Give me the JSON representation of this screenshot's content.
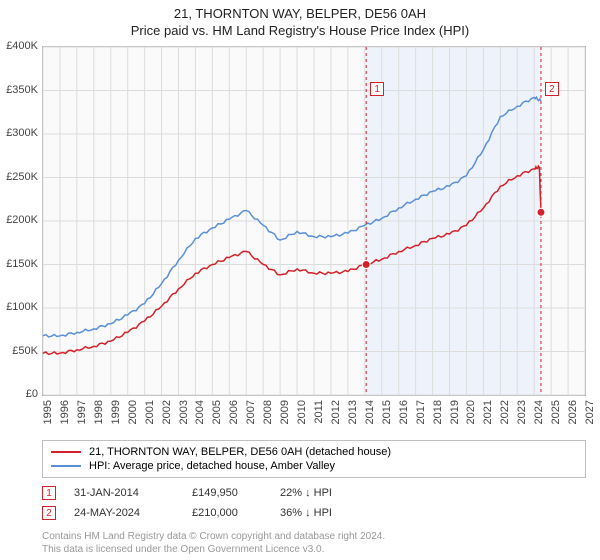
{
  "title_line1": "21, THORNTON WAY, BELPER, DE56 0AH",
  "title_line2": "Price paid vs. HM Land Registry's House Price Index (HPI)",
  "chart": {
    "type": "line",
    "x_min": 1995,
    "x_max": 2027,
    "y_min": 0,
    "y_max": 400000,
    "y_tick_step": 50000,
    "y_tick_labels": [
      "£0",
      "£50K",
      "£100K",
      "£150K",
      "£200K",
      "£250K",
      "£300K",
      "£350K",
      "£400K"
    ],
    "x_ticks": [
      1995,
      1996,
      1997,
      1998,
      1999,
      2000,
      2001,
      2002,
      2003,
      2004,
      2005,
      2006,
      2007,
      2008,
      2009,
      2010,
      2011,
      2012,
      2013,
      2014,
      2015,
      2016,
      2017,
      2018,
      2019,
      2020,
      2021,
      2022,
      2023,
      2024,
      2025,
      2026,
      2027
    ],
    "shade": {
      "x_start": 2014.08,
      "x_end": 2024.4,
      "color": "#eef3fb"
    },
    "grid_color": "#dcdcdc",
    "background_color": "#fafafa",
    "series": [
      {
        "name": "price_paid",
        "label": "21, THORNTON WAY, BELPER, DE56 0AH (detached house)",
        "color": "#d2222a",
        "width": 1.5,
        "points": [
          [
            1995,
            48000
          ],
          [
            1996,
            48000
          ],
          [
            1997,
            52000
          ],
          [
            1998,
            56000
          ],
          [
            1999,
            62000
          ],
          [
            2000,
            72000
          ],
          [
            2001,
            85000
          ],
          [
            2002,
            102000
          ],
          [
            2003,
            122000
          ],
          [
            2004,
            140000
          ],
          [
            2005,
            150000
          ],
          [
            2006,
            158000
          ],
          [
            2007,
            165000
          ],
          [
            2008,
            150000
          ],
          [
            2009,
            138000
          ],
          [
            2010,
            145000
          ],
          [
            2011,
            140000
          ],
          [
            2012,
            140000
          ],
          [
            2013,
            142000
          ],
          [
            2014,
            149950
          ],
          [
            2015,
            156000
          ],
          [
            2016,
            165000
          ],
          [
            2017,
            172000
          ],
          [
            2018,
            180000
          ],
          [
            2019,
            185000
          ],
          [
            2020,
            195000
          ],
          [
            2021,
            215000
          ],
          [
            2022,
            240000
          ],
          [
            2023,
            252000
          ],
          [
            2024,
            260000
          ],
          [
            2024.3,
            262000
          ],
          [
            2024.4,
            210000
          ]
        ]
      },
      {
        "name": "hpi",
        "label": "HPI: Average price, detached house, Amber Valley",
        "color": "#5b8fd6",
        "width": 1.5,
        "points": [
          [
            1995,
            68000
          ],
          [
            1996,
            68000
          ],
          [
            1997,
            72000
          ],
          [
            1998,
            76000
          ],
          [
            1999,
            82000
          ],
          [
            2000,
            92000
          ],
          [
            2001,
            105000
          ],
          [
            2002,
            128000
          ],
          [
            2003,
            155000
          ],
          [
            2004,
            180000
          ],
          [
            2005,
            192000
          ],
          [
            2006,
            202000
          ],
          [
            2007,
            212000
          ],
          [
            2008,
            195000
          ],
          [
            2009,
            178000
          ],
          [
            2010,
            188000
          ],
          [
            2011,
            182000
          ],
          [
            2012,
            182000
          ],
          [
            2013,
            186000
          ],
          [
            2014,
            195000
          ],
          [
            2015,
            203000
          ],
          [
            2016,
            215000
          ],
          [
            2017,
            225000
          ],
          [
            2018,
            234000
          ],
          [
            2019,
            240000
          ],
          [
            2020,
            252000
          ],
          [
            2021,
            282000
          ],
          [
            2022,
            320000
          ],
          [
            2023,
            332000
          ],
          [
            2024,
            342000
          ],
          [
            2024.4,
            338000
          ]
        ]
      }
    ],
    "sale_markers": [
      {
        "n": "1",
        "x": 2014.08,
        "y": 149950,
        "color": "#d2222a",
        "callout_y": 40000
      },
      {
        "n": "2",
        "x": 2024.4,
        "y": 210000,
        "color": "#d2222a",
        "callout_y": 40000
      }
    ]
  },
  "legend": [
    {
      "color": "#d2222a",
      "label": "21, THORNTON WAY, BELPER, DE56 0AH (detached house)"
    },
    {
      "color": "#5b8fd6",
      "label": "HPI: Average price, detached house, Amber Valley"
    }
  ],
  "sales": [
    {
      "n": "1",
      "color": "#d2222a",
      "date": "31-JAN-2014",
      "price": "£149,950",
      "diff": "22% ↓ HPI"
    },
    {
      "n": "2",
      "color": "#d2222a",
      "date": "24-MAY-2024",
      "price": "£210,000",
      "diff": "36% ↓ HPI"
    }
  ],
  "footer_line1": "Contains HM Land Registry data © Crown copyright and database right 2024.",
  "footer_line2": "This data is licensed under the Open Government Licence v3.0."
}
